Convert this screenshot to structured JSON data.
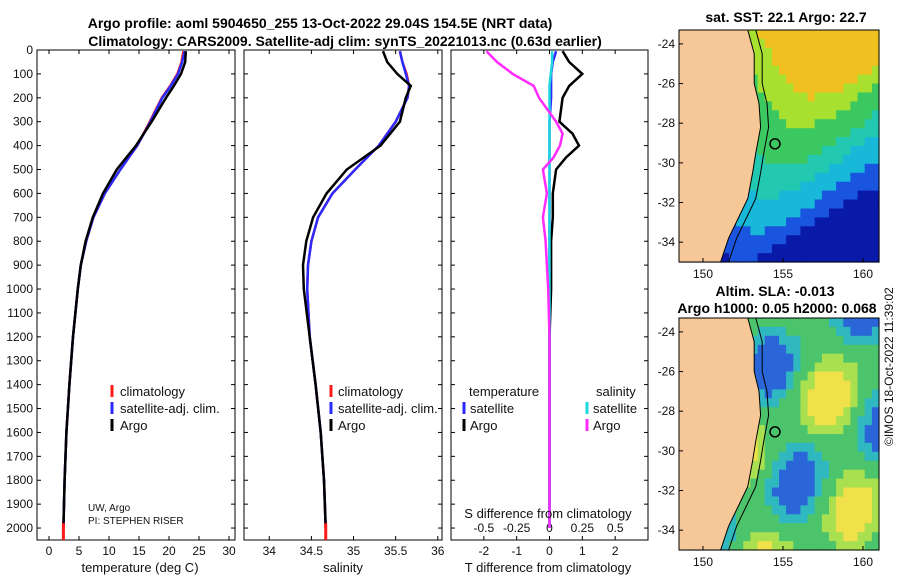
{
  "titles": {
    "line1": "Argo profile: aoml 5904650_255 13-Oct-2022 29.04S 154.5E (NRT data)",
    "line2": "Climatology: CARS2009. Satellite-adj clim: synTS_20221013.nc (0.63d earlier)"
  },
  "map_titles": {
    "sst": "sat. SST: 22.1 Argo: 22.7",
    "sla_line1": "Altim. SLA: -0.013",
    "sla_line2": "Argo h1000: 0.05 h2000: 0.068"
  },
  "watermark": "©IMOS 18-Oct-2022 11:39:02",
  "credit": {
    "line1": "UW, Argo",
    "line2": "PI: STEPHEN RISER"
  },
  "colors": {
    "climatology": "#ff1a1a",
    "satellite": "#2b2bff",
    "argo": "#000000",
    "temp_diff_sat": "#1ed8e0",
    "sal_diff_argo": "#ff2bff",
    "land": "#f7c897"
  },
  "legends": {
    "profile": [
      "climatology",
      "satellite-adj. clim.",
      "Argo"
    ],
    "diff_temperature_title": "temperature",
    "diff_salinity_title": "salinity",
    "diff_items": [
      "satellite",
      "Argo"
    ]
  },
  "chart_data": [
    {
      "type": "line",
      "name": "temperature",
      "xlabel": "temperature (deg C)",
      "ylabel": "depth",
      "xlim": [
        -2,
        31
      ],
      "ylim": [
        2050,
        0
      ],
      "xticks": [
        "0",
        "5",
        "10",
        "15",
        "20",
        "25",
        "30"
      ],
      "yticks": [
        "0",
        "100",
        "200",
        "300",
        "400",
        "500",
        "600",
        "700",
        "800",
        "900",
        "1000",
        "1100",
        "1200",
        "1300",
        "1400",
        "1500",
        "1600",
        "1700",
        "1800",
        "1900",
        "2000"
      ],
      "depth": [
        5,
        50,
        100,
        150,
        200,
        300,
        400,
        500,
        600,
        700,
        800,
        900,
        1000,
        1200,
        1400,
        1600,
        1800,
        2000
      ],
      "series": [
        {
          "name": "climatology",
          "values": [
            22.4,
            22.1,
            21.4,
            20.2,
            18.8,
            16.8,
            14.7,
            11.9,
            9.3,
            7.4,
            6.2,
            5.3,
            4.8,
            4.0,
            3.4,
            2.9,
            2.6,
            2.4
          ]
        },
        {
          "name": "satellite-adj. clim.",
          "values": [
            22.6,
            22.2,
            21.5,
            20.3,
            18.9,
            16.9,
            14.7,
            11.9,
            9.3,
            7.4,
            6.2,
            5.3,
            4.8,
            4.0,
            3.4,
            2.9,
            2.6,
            2.4
          ]
        },
        {
          "name": "Argo",
          "values": [
            22.8,
            22.7,
            22.0,
            20.8,
            19.5,
            17.1,
            14.5,
            11.3,
            9.0,
            7.3,
            6.1,
            5.3,
            4.8,
            4.0,
            3.4,
            2.9,
            2.6,
            2.4
          ]
        }
      ]
    },
    {
      "type": "line",
      "name": "salinity",
      "xlabel": "salinity",
      "ylim": [
        2050,
        0
      ],
      "xlim": [
        33.7,
        36.05
      ],
      "xticks": [
        "34",
        "34.5",
        "35",
        "35.5",
        "36"
      ],
      "depth": [
        5,
        50,
        100,
        150,
        200,
        300,
        400,
        500,
        600,
        700,
        800,
        900,
        1000,
        1200,
        1400,
        1600,
        1800,
        2000
      ],
      "series": [
        {
          "name": "climatology",
          "values": [
            35.55,
            35.58,
            35.63,
            35.66,
            35.64,
            35.5,
            35.3,
            35.02,
            34.75,
            34.58,
            34.5,
            34.46,
            34.45,
            34.48,
            34.55,
            34.61,
            34.65,
            34.67
          ]
        },
        {
          "name": "satellite-adj. clim.",
          "values": [
            35.55,
            35.58,
            35.62,
            35.66,
            35.64,
            35.5,
            35.3,
            35.02,
            34.75,
            34.58,
            34.5,
            34.46,
            34.45,
            34.48,
            34.55,
            34.61,
            34.65,
            34.67
          ]
        },
        {
          "name": "Argo",
          "values": [
            35.35,
            35.4,
            35.52,
            35.68,
            35.62,
            35.55,
            35.32,
            34.92,
            34.68,
            34.52,
            34.44,
            34.4,
            34.41,
            34.48,
            34.55,
            34.61,
            34.65,
            34.67
          ]
        }
      ]
    },
    {
      "type": "line",
      "name": "differences",
      "xlabel": "T difference from climatology",
      "xlabel_top": "S difference from climatology",
      "xlim": [
        -3,
        3
      ],
      "ylim": [
        2050,
        0
      ],
      "xticks": [
        "-2",
        "-1",
        "0",
        "1",
        "2"
      ],
      "sticks": [
        "-0.5",
        "-0.25",
        "0",
        "0.25",
        "0.5"
      ],
      "depth": [
        5,
        50,
        100,
        150,
        200,
        300,
        350,
        400,
        450,
        500,
        600,
        700,
        800,
        900,
        1000,
        1200,
        1500,
        2000
      ],
      "series": [
        {
          "name": "temperature satellite",
          "values": [
            0.2,
            0.1,
            0.05,
            0.05,
            0.05,
            0.0,
            0.0,
            0.0,
            0.0,
            0.0,
            0.0,
            0.0,
            0.0,
            0.0,
            0.0,
            0.0,
            0.0,
            0.0
          ]
        },
        {
          "name": "temperature Argo",
          "values": [
            0.4,
            0.6,
            1.0,
            0.6,
            0.4,
            0.3,
            0.7,
            0.9,
            0.5,
            0.2,
            0.1,
            0.1,
            0.05,
            0.05,
            0.05,
            0.0,
            0.0,
            0.0
          ]
        },
        {
          "name": "salinity satellite",
          "values": [
            0.02,
            0.02,
            0.01,
            0.0,
            0.0,
            0.0,
            0.0,
            0.0,
            0.0,
            0.0,
            0.0,
            0.0,
            0.0,
            0.0,
            0.0,
            0.0,
            0.0,
            0.0
          ]
        },
        {
          "name": "salinity Argo",
          "values": [
            -0.48,
            -0.4,
            -0.28,
            -0.12,
            -0.08,
            0.05,
            0.1,
            0.08,
            0.03,
            -0.05,
            -0.02,
            -0.05,
            -0.03,
            -0.02,
            -0.01,
            0.0,
            0.0,
            0.0
          ]
        }
      ]
    }
  ],
  "maps": {
    "xticks": [
      "150",
      "155",
      "160"
    ],
    "yticks": [
      "-24",
      "-26",
      "-28",
      "-30",
      "-32",
      "-34"
    ],
    "lon_range": [
      148.5,
      161
    ],
    "lat_range": [
      -35,
      -23.3
    ],
    "argo_position": {
      "lon": 154.5,
      "lat": -29.04
    }
  }
}
